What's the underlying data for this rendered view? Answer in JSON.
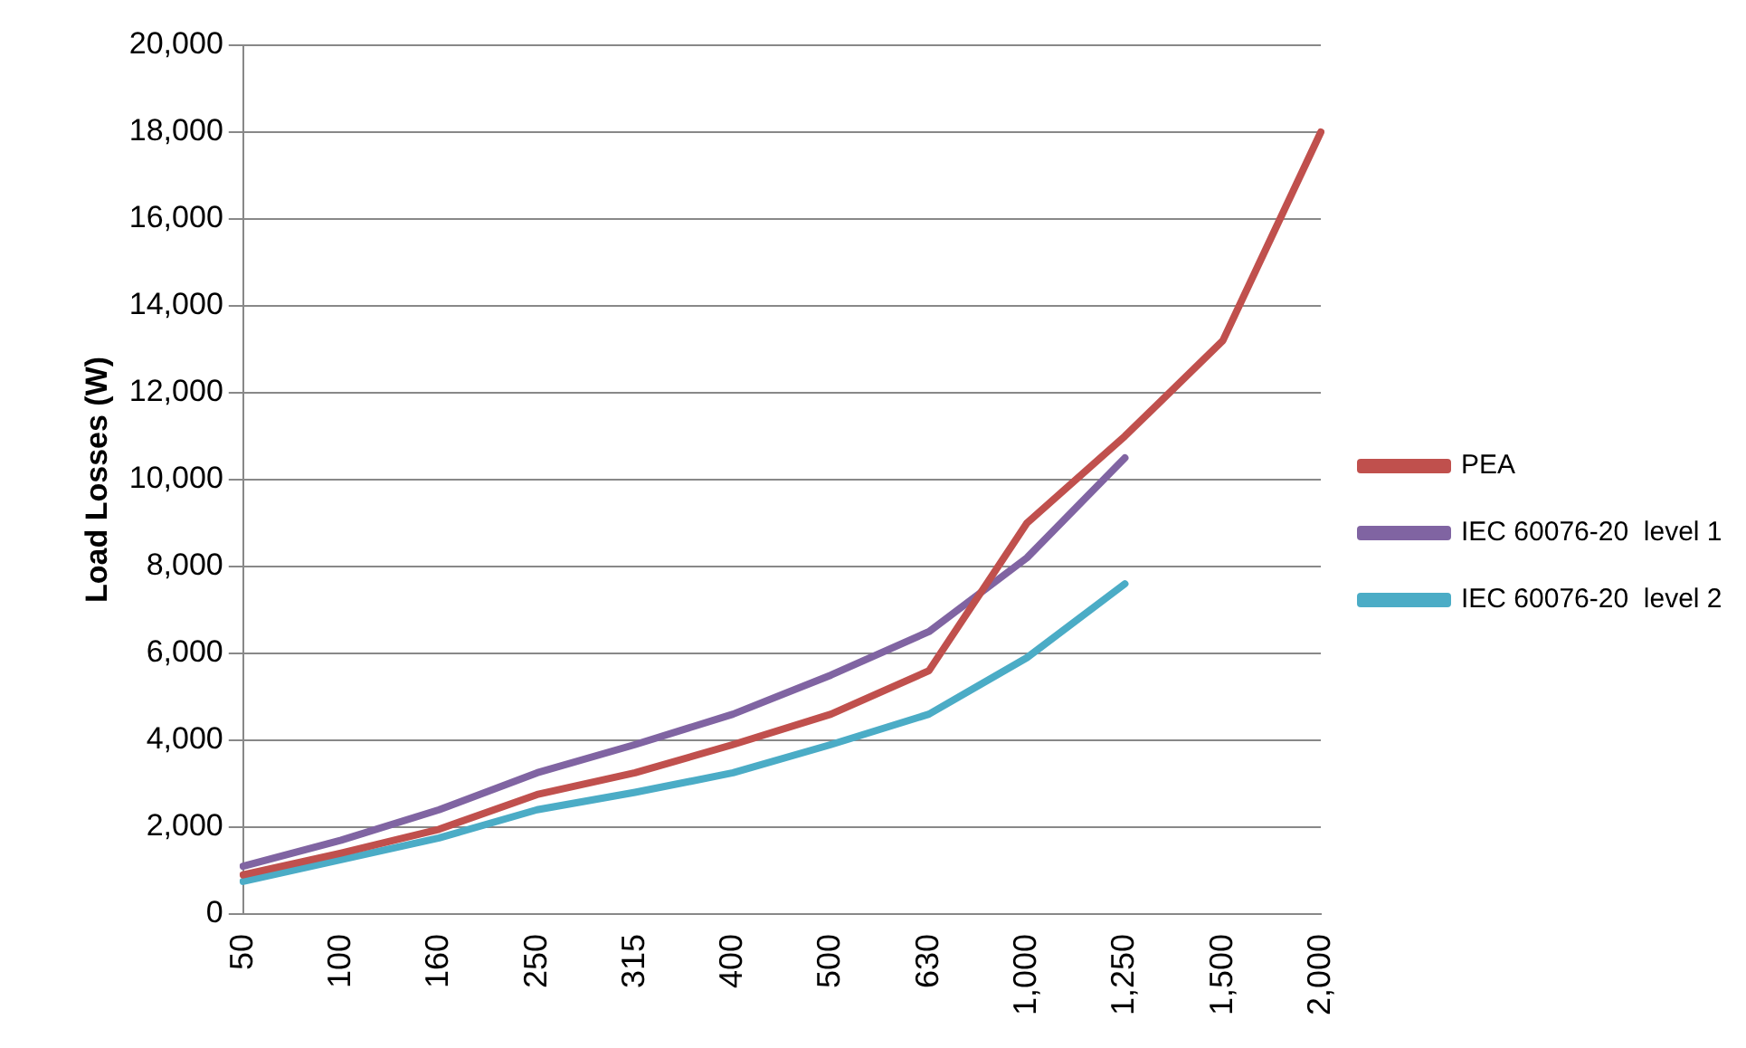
{
  "chart_data": {
    "type": "line",
    "ylabel": "Load Losses (W)",
    "categories": [
      "50",
      "100",
      "160",
      "250",
      "315",
      "400",
      "500",
      "630",
      "1,000",
      "1,250",
      "1,500",
      "2,000"
    ],
    "series": [
      {
        "name": "PEA",
        "color": "#c0504d",
        "values": [
          900,
          1400,
          1950,
          2750,
          3250,
          3900,
          4600,
          5600,
          9000,
          11000,
          13200,
          18000
        ]
      },
      {
        "name": "IEC 60076-20  level 1",
        "color": "#8064a2",
        "values": [
          1100,
          1700,
          2400,
          3250,
          3900,
          4600,
          5500,
          6500,
          8200,
          10500,
          null,
          null
        ]
      },
      {
        "name": "IEC 60076-20  level 2",
        "color": "#4bacc6",
        "values": [
          750,
          1250,
          1750,
          2400,
          2800,
          3250,
          3900,
          4600,
          5900,
          7600,
          null,
          null
        ]
      }
    ],
    "ylim": [
      0,
      20000
    ],
    "yticks": [
      {
        "value": 0,
        "label": "0"
      },
      {
        "value": 2000,
        "label": "2,000"
      },
      {
        "value": 4000,
        "label": "4,000"
      },
      {
        "value": 6000,
        "label": "6,000"
      },
      {
        "value": 8000,
        "label": "8,000"
      },
      {
        "value": 10000,
        "label": "10,000"
      },
      {
        "value": 12000,
        "label": "12,000"
      },
      {
        "value": 14000,
        "label": "14,000"
      },
      {
        "value": 16000,
        "label": "16,000"
      },
      {
        "value": 18000,
        "label": "18,000"
      },
      {
        "value": 20000,
        "label": "20,000"
      }
    ],
    "grid": "y",
    "legend": "right",
    "marker": "none",
    "line_style": "solid"
  }
}
